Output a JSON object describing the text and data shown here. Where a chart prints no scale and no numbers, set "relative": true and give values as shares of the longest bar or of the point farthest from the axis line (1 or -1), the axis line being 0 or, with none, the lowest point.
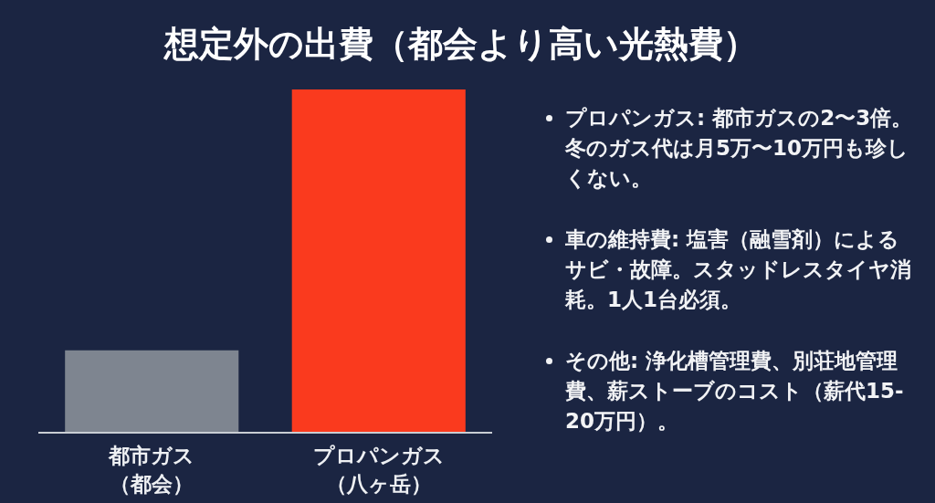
{
  "chart_data": {
    "type": "bar",
    "title": "想定外の出費（都会より高い光熱費）",
    "categories": [
      "都市ガス（都会）",
      "プロパンガス（八ヶ岳）"
    ],
    "values": [
      0.24,
      1
    ],
    "colors": [
      "#7e8590",
      "#fa3a1e"
    ],
    "relative": true,
    "annotations": [
      "プロパンガス: 都市ガスの2〜3倍。冬のガス代は月5万〜10万円も珍しくない。",
      "車の維持費: 塩害（融雪剤）によるサビ・故障。スタッドレスタイヤ消耗。1人1台必須。",
      "その他: 浄化槽管理費、別荘地管理費、薪ストーブのコスト（薪代15-20万円）。"
    ]
  }
}
